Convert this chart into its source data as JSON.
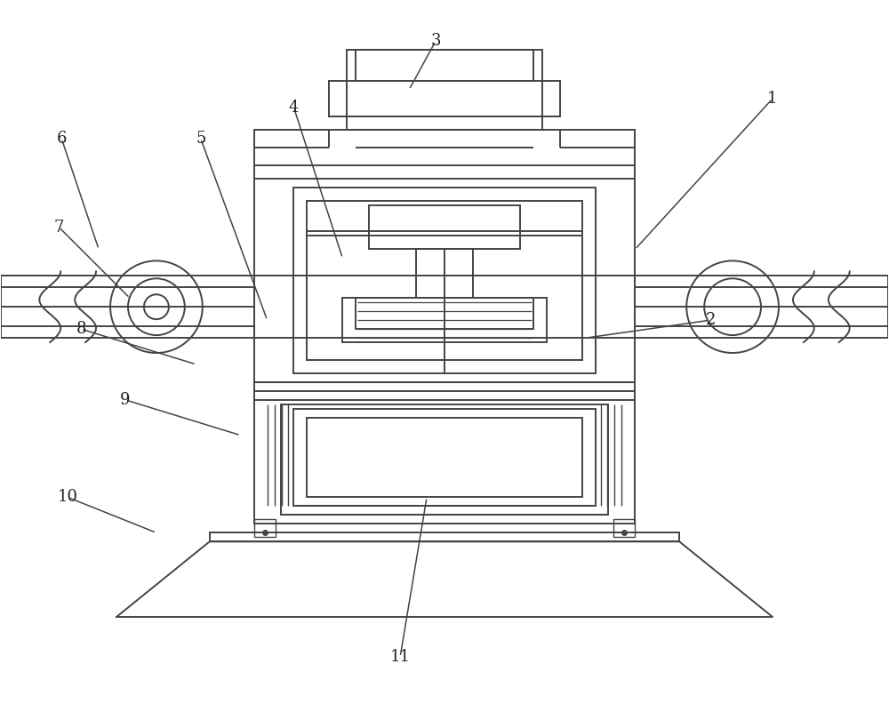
{
  "bg_color": "#ffffff",
  "line_color": "#444444",
  "lw": 1.4
}
